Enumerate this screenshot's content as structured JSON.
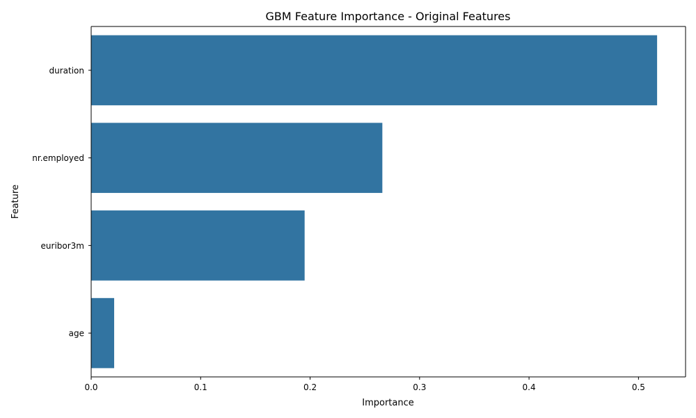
{
  "chart_data": {
    "type": "bar",
    "orientation": "horizontal",
    "title": "GBM Feature Importance - Original Features",
    "xlabel": "Importance",
    "ylabel": "Feature",
    "categories": [
      "duration",
      "nr.employed",
      "euribor3m",
      "age"
    ],
    "values": [
      0.517,
      0.266,
      0.195,
      0.021
    ],
    "xlim": [
      0,
      0.543
    ],
    "xticks": [
      0,
      0.1,
      0.2,
      0.3,
      0.4,
      0.5
    ],
    "xtick_labels": [
      "0.0",
      "0.1",
      "0.2",
      "0.3",
      "0.4",
      "0.5"
    ],
    "bar_color": "#3274a1",
    "grid": false,
    "legend": false
  }
}
